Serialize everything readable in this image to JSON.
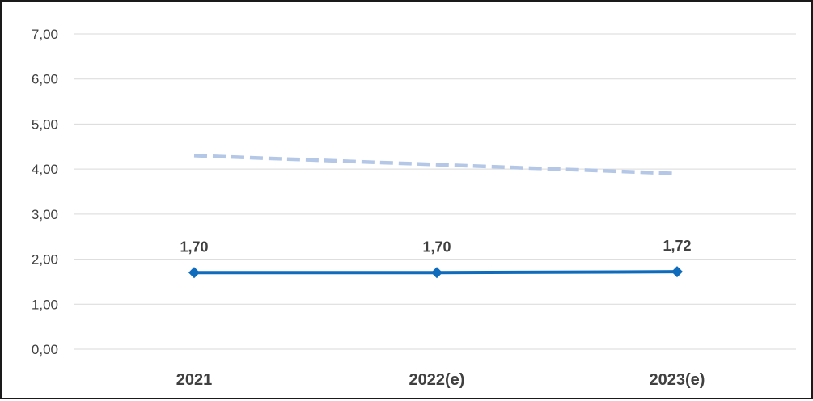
{
  "chart_data": {
    "type": "line",
    "categories": [
      "2021",
      "2022(e)",
      "2023(e)"
    ],
    "ylim": [
      0,
      7
    ],
    "y_ticks": [
      "0,00",
      "1,00",
      "2,00",
      "3,00",
      "4,00",
      "5,00",
      "6,00",
      "7,00"
    ],
    "grid": true,
    "legend": "none",
    "series": [
      {
        "values": [
          1.7,
          1.7,
          1.72
        ],
        "data_labels": [
          "1,70",
          "1,70",
          "1,72"
        ],
        "color": "#0f6cbd",
        "style": "solid",
        "marker": "diamond"
      },
      {
        "values": [
          4.3,
          4.1,
          3.9
        ],
        "color": "#b4c7e7",
        "style": "dashed",
        "marker": "none"
      }
    ]
  }
}
